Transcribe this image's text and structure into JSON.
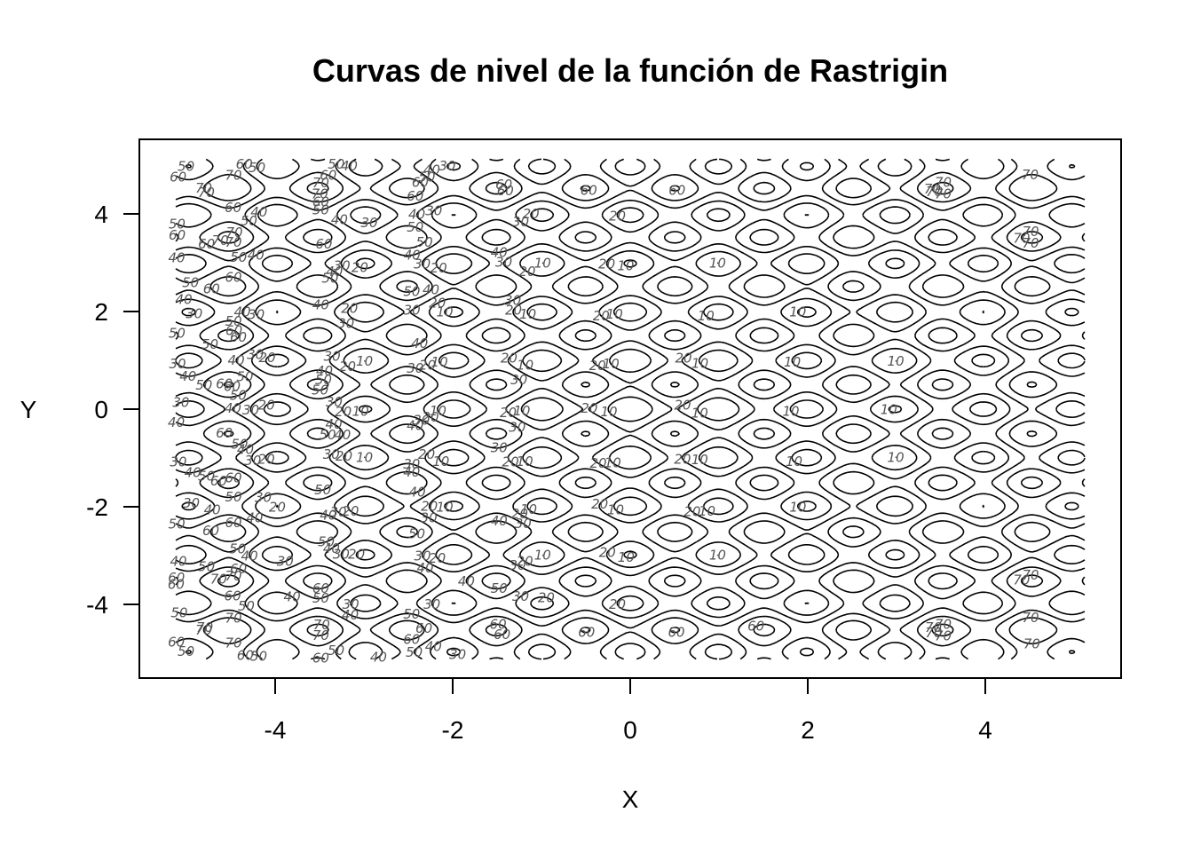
{
  "chart_data": {
    "type": "contour",
    "function": "Rastrigin",
    "title": "Curvas de nivel de la función de Rastrigin",
    "xlabel": "X",
    "ylabel": "Y",
    "xlim": [
      -5.12,
      5.12
    ],
    "ylim": [
      -5.12,
      5.12
    ],
    "xticks": [
      -4,
      -2,
      0,
      2,
      4
    ],
    "yticks": [
      -4,
      -2,
      0,
      2,
      4
    ],
    "levels": [
      10,
      20,
      30,
      40,
      50,
      60,
      70
    ],
    "grid": false,
    "legend": "none"
  }
}
